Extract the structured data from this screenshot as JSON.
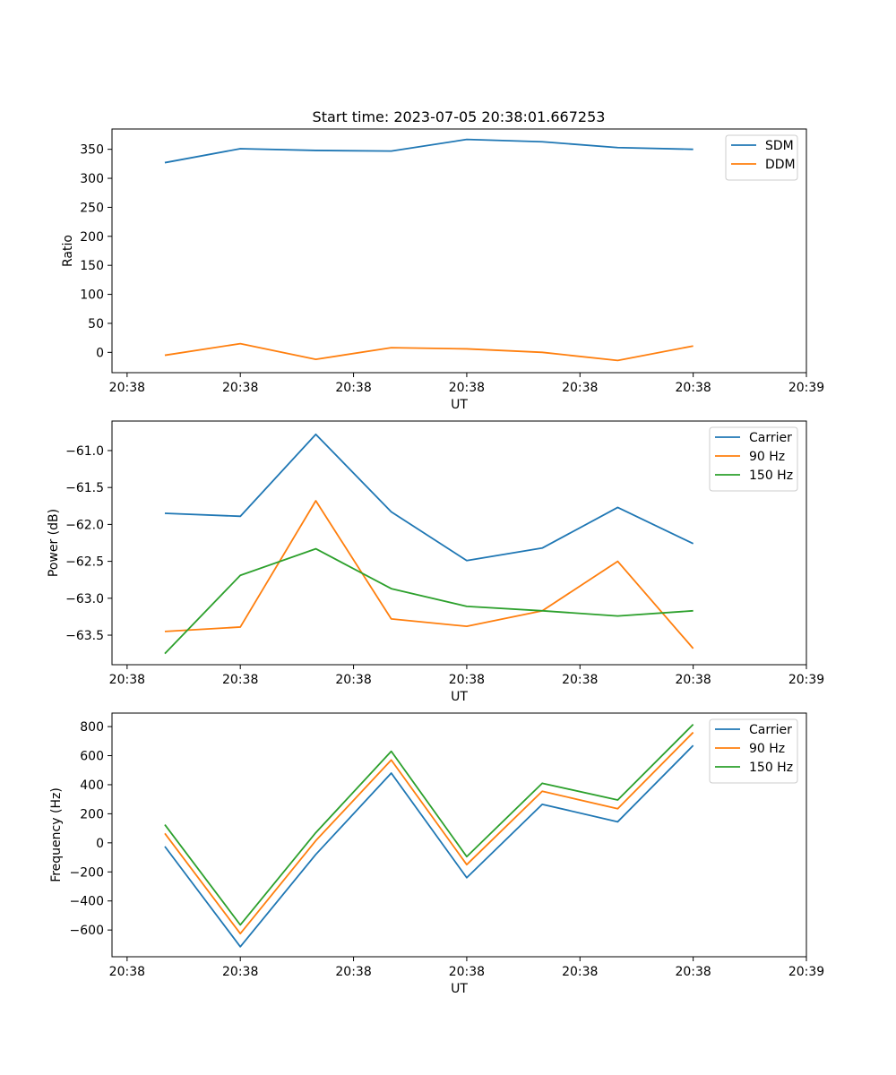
{
  "figure_title": "Start time: 2023-07-05 20:38:01.667253",
  "chart_data": [
    {
      "type": "line",
      "title": "Start time: 2023-07-05 20:38:01.667253",
      "xlabel": "UT",
      "ylabel": "Ratio",
      "xlim": [
        -0.2,
        9.0
      ],
      "ylim": [
        -35,
        385
      ],
      "xticks": [
        0,
        1.5,
        3,
        4.5,
        6,
        7.5,
        9
      ],
      "xtick_labels": [
        "20:38",
        "20:38",
        "20:38",
        "20:38",
        "20:38",
        "20:38",
        "20:39"
      ],
      "yticks": [
        0,
        50,
        100,
        150,
        200,
        250,
        300,
        350
      ],
      "ytick_labels": [
        "0",
        "50",
        "100",
        "150",
        "200",
        "250",
        "300",
        "350"
      ],
      "legend_position": "top-right",
      "x": [
        0.5,
        1.5,
        2.5,
        3.5,
        4.5,
        5.5,
        6.5,
        7.5
      ],
      "series": [
        {
          "name": "SDM",
          "color": "#1f77b4",
          "values": [
            327,
            351,
            348,
            347,
            367,
            363,
            353,
            350
          ]
        },
        {
          "name": "DDM",
          "color": "#ff7f0e",
          "values": [
            -5,
            15,
            -12,
            8,
            6,
            0,
            -14,
            11
          ]
        }
      ]
    },
    {
      "type": "line",
      "xlabel": "UT",
      "ylabel": "Power (dB)",
      "xlim": [
        -0.2,
        9.0
      ],
      "ylim": [
        -63.9,
        -60.6
      ],
      "xticks": [
        0,
        1.5,
        3,
        4.5,
        6,
        7.5,
        9
      ],
      "xtick_labels": [
        "20:38",
        "20:38",
        "20:38",
        "20:38",
        "20:38",
        "20:38",
        "20:39"
      ],
      "yticks": [
        -63.5,
        -63.0,
        -62.5,
        -62.0,
        -61.5,
        -61.0
      ],
      "ytick_labels": [
        "−63.5",
        "−63.0",
        "−62.5",
        "−62.0",
        "−61.5",
        "−61.0"
      ],
      "legend_position": "top-right",
      "x": [
        0.5,
        1.5,
        2.5,
        3.5,
        4.5,
        5.5,
        6.5,
        7.5
      ],
      "series": [
        {
          "name": "Carrier",
          "color": "#1f77b4",
          "values": [
            -61.85,
            -61.89,
            -60.78,
            -61.83,
            -62.49,
            -62.32,
            -61.77,
            -62.26
          ]
        },
        {
          "name": "90 Hz",
          "color": "#ff7f0e",
          "values": [
            -63.45,
            -63.39,
            -61.68,
            -63.28,
            -63.38,
            -63.17,
            -62.5,
            -63.68
          ]
        },
        {
          "name": "150 Hz",
          "color": "#2ca02c",
          "values": [
            -63.75,
            -62.69,
            -62.33,
            -62.87,
            -63.11,
            -63.17,
            -63.24,
            -63.17
          ]
        }
      ]
    },
    {
      "type": "line",
      "xlabel": "UT",
      "ylabel": "Frequency (Hz)",
      "xlim": [
        -0.2,
        9.0
      ],
      "ylim": [
        -784,
        893
      ],
      "xticks": [
        0,
        1.5,
        3,
        4.5,
        6,
        7.5,
        9
      ],
      "xtick_labels": [
        "20:38",
        "20:38",
        "20:38",
        "20:38",
        "20:38",
        "20:38",
        "20:39"
      ],
      "yticks": [
        -600,
        -400,
        -200,
        0,
        200,
        400,
        600,
        800
      ],
      "ytick_labels": [
        "−600",
        "−400",
        "−200",
        "0",
        "200",
        "400",
        "600",
        "800"
      ],
      "legend_position": "top-right",
      "x": [
        0.5,
        1.5,
        2.5,
        3.5,
        4.5,
        5.5,
        6.5,
        7.5
      ],
      "series": [
        {
          "name": "Carrier",
          "color": "#1f77b4",
          "values": [
            -25,
            -715,
            -80,
            480,
            -240,
            265,
            145,
            670
          ]
        },
        {
          "name": "90 Hz",
          "color": "#ff7f0e",
          "values": [
            65,
            -625,
            15,
            570,
            -150,
            355,
            235,
            760
          ]
        },
        {
          "name": "150 Hz",
          "color": "#2ca02c",
          "values": [
            125,
            -565,
            70,
            630,
            -95,
            410,
            295,
            815
          ]
        }
      ]
    }
  ]
}
